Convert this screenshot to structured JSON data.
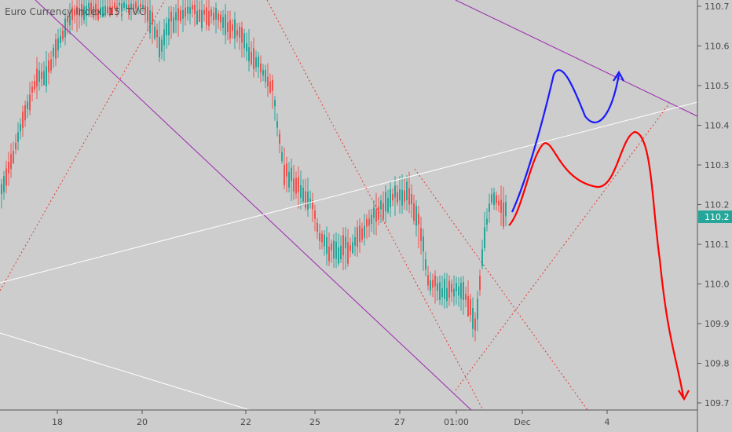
{
  "chart_data": {
    "type": "candlestick",
    "title": "Euro Currency Index, 15, TVC",
    "symbol": "Euro Currency Index",
    "interval": "15",
    "source": "TVC",
    "y_axis": {
      "position": "right",
      "ticks": [
        "110.7",
        "110.6",
        "110.5",
        "110.4",
        "110.3",
        "110.2",
        "110.1",
        "110.0",
        "109.9",
        "109.8",
        "109.7"
      ],
      "range": [
        109.68,
        110.72
      ]
    },
    "x_axis": {
      "ticks": [
        "18",
        "20",
        "22",
        "25",
        "27",
        "01:00",
        "Dec",
        "4"
      ]
    },
    "current_price": {
      "value": "110.2",
      "color": "#26a69a"
    },
    "colors": {
      "background": "#cdcdcd",
      "up": "#26a69a",
      "down": "#ef5350",
      "channel": "#9c27b0",
      "trendline": "#ffffff",
      "dotted": "#e53935",
      "bullish_path": "#1a1aff",
      "bearish_path": "#ff0000"
    },
    "drawings": [
      {
        "name": "descending-channel-upper",
        "type": "trendline",
        "color": "purple"
      },
      {
        "name": "descending-channel-lower",
        "type": "trendline",
        "color": "purple"
      },
      {
        "name": "rising-trendline",
        "type": "trendline",
        "color": "white"
      },
      {
        "name": "bullish-projection",
        "type": "freehand-arrow",
        "color": "blue"
      },
      {
        "name": "bearish-projection",
        "type": "freehand-arrow",
        "color": "red"
      }
    ]
  }
}
